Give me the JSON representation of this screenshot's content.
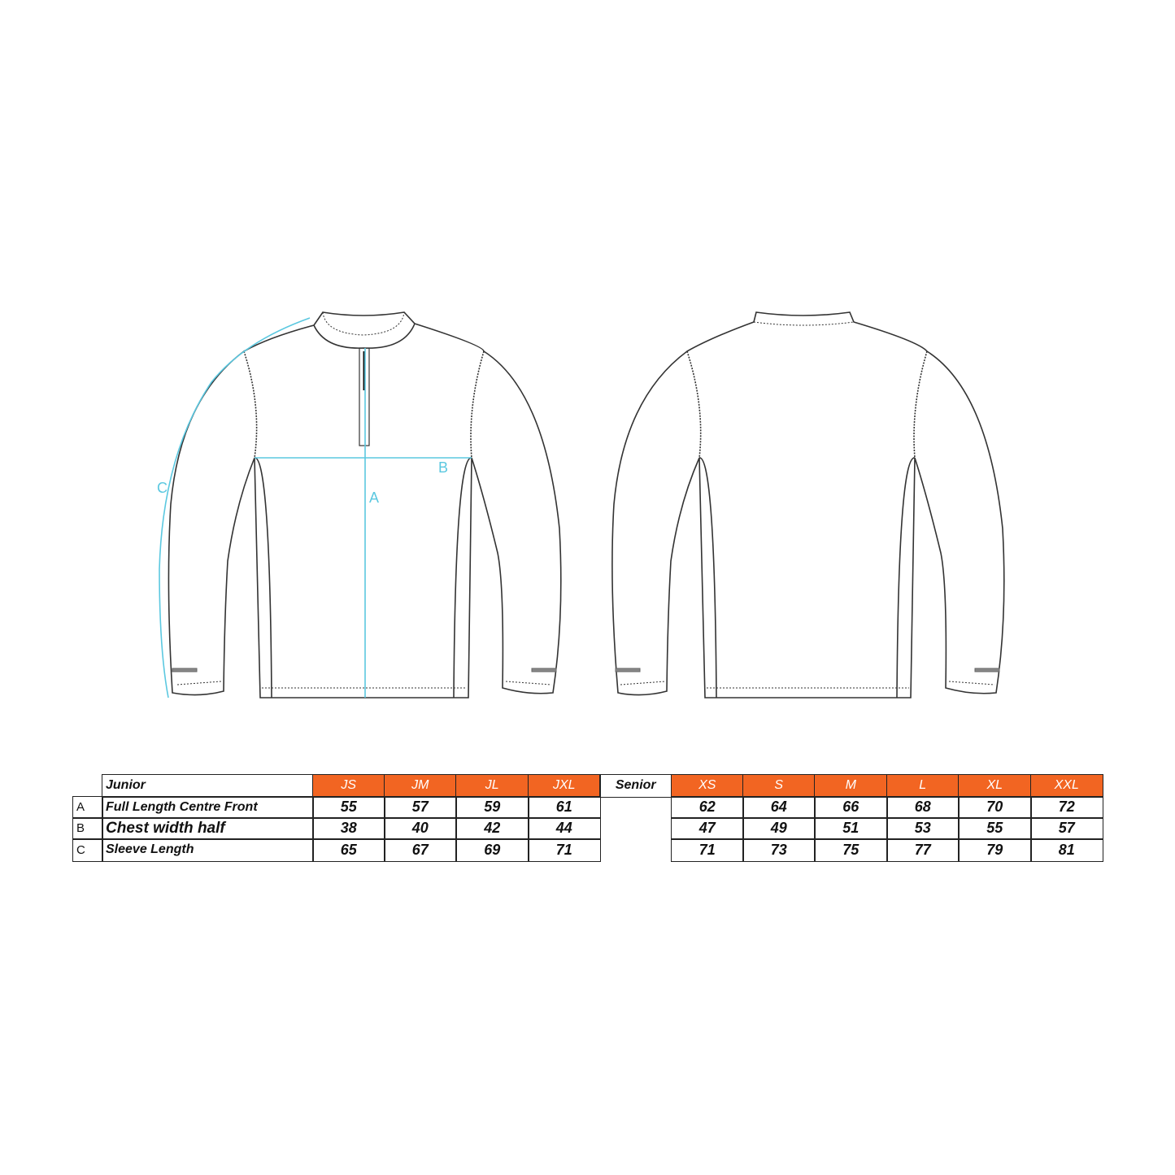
{
  "diagram": {
    "measure_labels": {
      "a": "A",
      "b": "B",
      "c": "C"
    },
    "colors": {
      "measure_line": "#5bc8e0",
      "header_fill": "#f26522",
      "outline": "#333333"
    }
  },
  "junior": {
    "title": "Junior",
    "sizes": [
      "JS",
      "JM",
      "JL",
      "JXL"
    ],
    "rows": [
      {
        "letter": "A",
        "label": "Full Length Centre Front",
        "values": [
          "55",
          "57",
          "59",
          "61"
        ]
      },
      {
        "letter": "B",
        "label": "Chest width half",
        "values": [
          "38",
          "40",
          "42",
          "44"
        ]
      },
      {
        "letter": "C",
        "label": "Sleeve Length",
        "values": [
          "65",
          "67",
          "69",
          "71"
        ]
      }
    ]
  },
  "senior": {
    "title": "Senior",
    "sizes": [
      "XS",
      "S",
      "M",
      "L",
      "XL",
      "XXL"
    ],
    "rows": [
      {
        "values": [
          "62",
          "64",
          "66",
          "68",
          "70",
          "72"
        ]
      },
      {
        "values": [
          "47",
          "49",
          "51",
          "53",
          "55",
          "57"
        ]
      },
      {
        "values": [
          "71",
          "73",
          "75",
          "77",
          "79",
          "81"
        ]
      }
    ]
  }
}
